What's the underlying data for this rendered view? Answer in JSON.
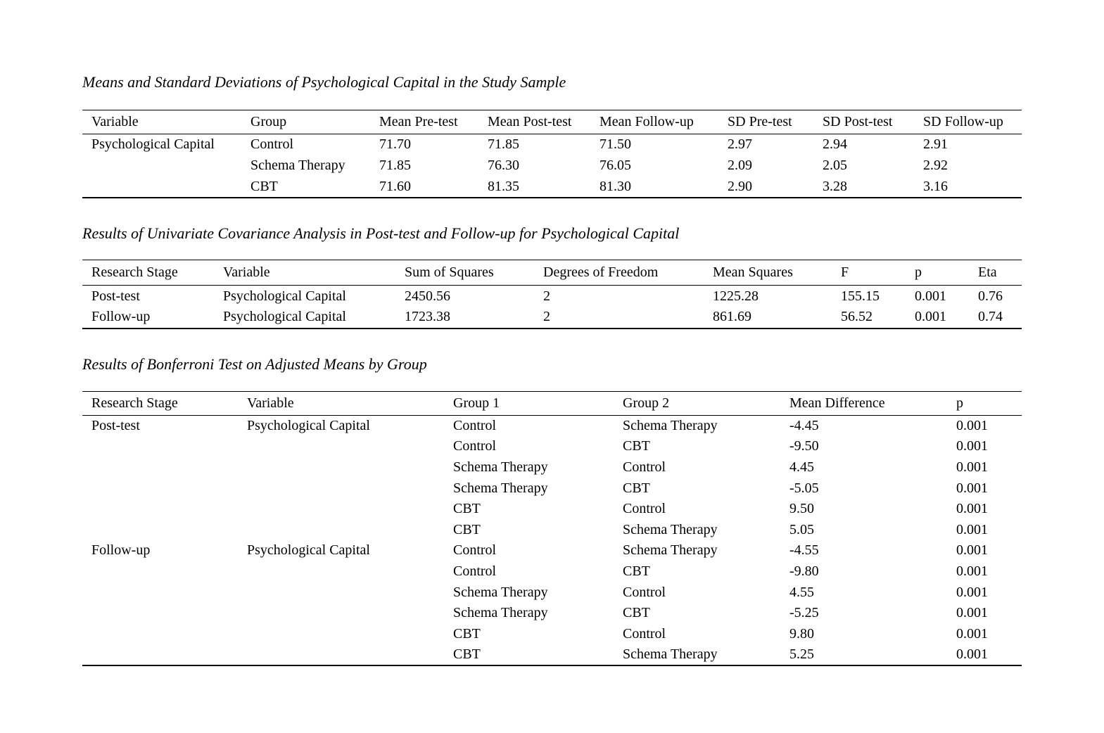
{
  "page": {
    "kind": "journal-article-tables",
    "background_color": "#ffffff",
    "text_color": "#000000"
  },
  "tables": [
    {
      "title": "Means and Standard Deviations of Psychological Capital in the Study Sample",
      "columns": [
        "Variable",
        "Group",
        "Mean Pre-test",
        "Mean Post-test",
        "Mean Follow-up",
        "SD Pre-test",
        "SD Post-test",
        "SD Follow-up"
      ],
      "rows": [
        [
          "Psychological Capital",
          "Control",
          "71.70",
          "71.85",
          "71.50",
          "2.97",
          "2.94",
          "2.91"
        ],
        [
          "",
          "Schema Therapy",
          "71.85",
          "76.30",
          "76.05",
          "2.09",
          "2.05",
          "2.92"
        ],
        [
          "",
          "CBT",
          "71.60",
          "81.35",
          "81.30",
          "2.90",
          "3.28",
          "3.16"
        ]
      ]
    },
    {
      "title": "Results of Univariate Covariance Analysis in Post-test and Follow-up for Psychological Capital",
      "columns": [
        "Research Stage",
        "Variable",
        "Sum of Squares",
        "Degrees of Freedom",
        "Mean Squares",
        "F",
        "p",
        "Eta"
      ],
      "rows": [
        [
          "Post-test",
          "Psychological Capital",
          "2450.56",
          "2",
          "1225.28",
          "155.15",
          "0.001",
          "0.76"
        ],
        [
          "Follow-up",
          "Psychological Capital",
          "1723.38",
          "2",
          "861.69",
          "56.52",
          "0.001",
          "0.74"
        ]
      ]
    },
    {
      "title": "Results of Bonferroni Test on Adjusted Means by Group",
      "columns": [
        "Research Stage",
        "Variable",
        "Group 1",
        "Group 2",
        "Mean Difference",
        "p"
      ],
      "rows": [
        [
          "Post-test",
          "Psychological Capital",
          "Control",
          "Schema Therapy",
          "-4.45",
          "0.001"
        ],
        [
          "",
          "",
          "Control",
          "CBT",
          "-9.50",
          "0.001"
        ],
        [
          "",
          "",
          "Schema Therapy",
          "Control",
          "4.45",
          "0.001"
        ],
        [
          "",
          "",
          "Schema Therapy",
          "CBT",
          "-5.05",
          "0.001"
        ],
        [
          "",
          "",
          "CBT",
          "Control",
          "9.50",
          "0.001"
        ],
        [
          "",
          "",
          "CBT",
          "Schema Therapy",
          "5.05",
          "0.001"
        ],
        [
          "Follow-up",
          "Psychological Capital",
          "Control",
          "Schema Therapy",
          "-4.55",
          "0.001"
        ],
        [
          "",
          "",
          "Control",
          "CBT",
          "-9.80",
          "0.001"
        ],
        [
          "",
          "",
          "Schema Therapy",
          "Control",
          "4.55",
          "0.001"
        ],
        [
          "",
          "",
          "Schema Therapy",
          "CBT",
          "-5.25",
          "0.001"
        ],
        [
          "",
          "",
          "CBT",
          "Control",
          "9.80",
          "0.001"
        ],
        [
          "",
          "",
          "CBT",
          "Schema Therapy",
          "5.25",
          "0.001"
        ]
      ]
    }
  ]
}
